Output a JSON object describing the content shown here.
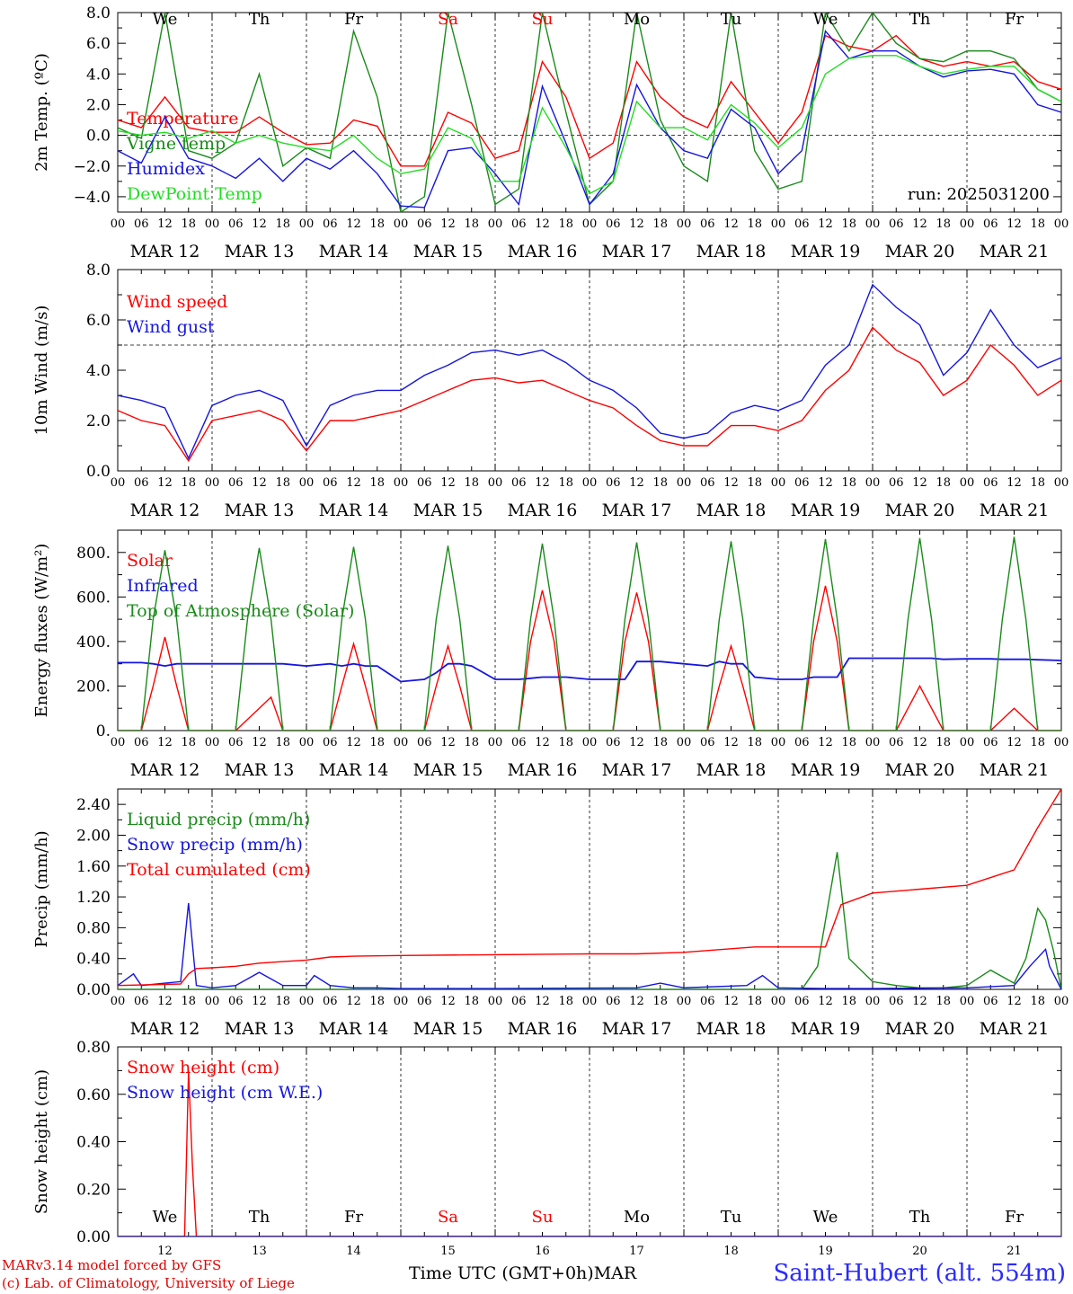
{
  "footer": {
    "model": "MARv3.14 model forced by GFS",
    "copyright": "(c) Lab. of Climatology, University of Liege",
    "time_axis": "Time UTC (GMT+0h)MAR",
    "station": "Saint-Hubert (alt. 554m)"
  },
  "colors": {
    "red": "#ff0000",
    "darkgreen": "#1a8a1a",
    "blue": "#1515e0",
    "lightgreen": "#22dd22"
  },
  "chart_data": [
    {
      "type": "line",
      "id": "temp",
      "ylabel": "2m Temp. (ºC)",
      "ylim": [
        -5,
        8
      ],
      "yticks": [
        -4,
        -2,
        0,
        2,
        4,
        6,
        8
      ],
      "ytick_labels": [
        "−4.0",
        "−2.0",
        "0.0",
        "2.0",
        "4.0",
        "6.0",
        "8.0"
      ],
      "reference_line": 0,
      "run_label": "run: 2025031200",
      "day_names": [
        {
          "text": "We",
          "color": "#000000"
        },
        {
          "text": "Th",
          "color": "#000000"
        },
        {
          "text": "Fr",
          "color": "#000000"
        },
        {
          "text": "Sa",
          "color": "#ff0000"
        },
        {
          "text": "Su",
          "color": "#ff0000"
        },
        {
          "text": "Mo",
          "color": "#000000"
        },
        {
          "text": "Tu",
          "color": "#000000"
        },
        {
          "text": "We",
          "color": "#000000"
        },
        {
          "text": "Th",
          "color": "#000000"
        },
        {
          "text": "Fr",
          "color": "#000000"
        }
      ],
      "x_hours": [
        0,
        6,
        12,
        18,
        24,
        30,
        36,
        42,
        48,
        54,
        60,
        66,
        72,
        78,
        84,
        90,
        96,
        102,
        108,
        114,
        120,
        126,
        132,
        138,
        144,
        150,
        156,
        162,
        168,
        174,
        180,
        186,
        192,
        198,
        204,
        210,
        216,
        222,
        228,
        234,
        240
      ],
      "series": [
        {
          "name": "Temperature",
          "color": "#ff0000",
          "values": [
            1.0,
            0.5,
            2.5,
            0.5,
            0.2,
            0.2,
            1.2,
            0.2,
            -0.6,
            -0.5,
            1.0,
            0.6,
            -2.0,
            -2.0,
            1.5,
            0.8,
            -1.5,
            -1.0,
            4.8,
            2.5,
            -1.5,
            -0.5,
            4.8,
            2.5,
            1.2,
            0.5,
            3.5,
            1.5,
            -0.5,
            1.5,
            6.5,
            5.8,
            5.5,
            6.5,
            5.0,
            4.5,
            4.8,
            4.5,
            4.8,
            3.5,
            3.0
          ]
        },
        {
          "name": "Vigne temp",
          "color": "#1a8a1a",
          "values": [
            0.5,
            -0.2,
            8.0,
            -1.0,
            -1.5,
            -0.5,
            4.0,
            -2.0,
            -0.8,
            -1.5,
            6.8,
            2.5,
            -5.0,
            -4.0,
            8.0,
            2.0,
            -4.5,
            -3.5,
            8.0,
            1.5,
            -4.5,
            -3.0,
            8.0,
            1.0,
            -2.0,
            -3.0,
            8.0,
            -1.0,
            -3.5,
            -3.0,
            8.0,
            5.5,
            8.0,
            6.0,
            5.0,
            4.8,
            5.5,
            5.5,
            5.0,
            3.0,
            2.2
          ]
        },
        {
          "name": "Humidex",
          "color": "#1515e0",
          "values": [
            -1.0,
            -1.8,
            1.2,
            -1.5,
            -2.0,
            -2.8,
            -1.5,
            -3.0,
            -1.5,
            -2.2,
            -1.0,
            -2.5,
            -4.6,
            -4.7,
            -1.0,
            -0.8,
            -2.5,
            -4.5,
            3.2,
            -0.5,
            -4.5,
            -2.5,
            3.3,
            0.5,
            -1.0,
            -1.5,
            1.7,
            0.5,
            -2.5,
            -1.0,
            6.8,
            5.0,
            5.5,
            5.5,
            4.5,
            3.8,
            4.2,
            4.3,
            4.0,
            2.0,
            1.5
          ]
        },
        {
          "name": "DewPoint Temp",
          "color": "#22dd22",
          "values": [
            0.3,
            0.0,
            0.2,
            -0.2,
            0.3,
            -0.5,
            0.0,
            -0.5,
            -0.8,
            -1.0,
            0.0,
            -1.5,
            -2.5,
            -2.2,
            0.5,
            -0.2,
            -3.0,
            -3.0,
            1.8,
            -0.8,
            -3.8,
            -3.0,
            2.2,
            0.5,
            0.5,
            -0.3,
            2.0,
            0.8,
            -0.8,
            0.5,
            4.0,
            5.0,
            5.2,
            5.2,
            4.5,
            4.0,
            4.3,
            4.5,
            4.5,
            3.0,
            2.2
          ]
        }
      ]
    },
    {
      "type": "line",
      "id": "wind",
      "ylabel": "10m Wind (m/s)",
      "ylim": [
        0,
        8
      ],
      "yticks": [
        0,
        2,
        4,
        6,
        8
      ],
      "ytick_labels": [
        "0.0",
        "2.0",
        "4.0",
        "6.0",
        "8.0"
      ],
      "reference_line": 5,
      "x_hours": [
        0,
        6,
        12,
        18,
        24,
        30,
        36,
        42,
        48,
        54,
        60,
        66,
        72,
        78,
        84,
        90,
        96,
        102,
        108,
        114,
        120,
        126,
        132,
        138,
        144,
        150,
        156,
        162,
        168,
        174,
        180,
        186,
        192,
        198,
        204,
        210,
        216,
        222,
        228,
        234,
        240
      ],
      "series": [
        {
          "name": "Wind speed",
          "color": "#ff0000",
          "values": [
            2.4,
            2.0,
            1.8,
            0.4,
            2.0,
            2.2,
            2.4,
            2.0,
            0.8,
            2.0,
            2.0,
            2.2,
            2.4,
            2.8,
            3.2,
            3.6,
            3.7,
            3.5,
            3.6,
            3.2,
            2.8,
            2.5,
            1.8,
            1.2,
            1.0,
            1.0,
            1.8,
            1.8,
            1.6,
            2.0,
            3.2,
            4.0,
            5.7,
            4.8,
            4.3,
            3.0,
            3.6,
            5.0,
            4.2,
            3.0,
            3.6
          ]
        },
        {
          "name": "Wind gust",
          "color": "#1515e0",
          "values": [
            3.0,
            2.8,
            2.5,
            0.5,
            2.6,
            3.0,
            3.2,
            2.8,
            1.0,
            2.6,
            3.0,
            3.2,
            3.2,
            3.8,
            4.2,
            4.7,
            4.8,
            4.6,
            4.8,
            4.3,
            3.6,
            3.2,
            2.5,
            1.5,
            1.3,
            1.5,
            2.3,
            2.6,
            2.4,
            2.8,
            4.2,
            5.0,
            7.4,
            6.5,
            5.8,
            3.8,
            4.7,
            6.4,
            5.0,
            4.1,
            4.5
          ]
        }
      ]
    },
    {
      "type": "line",
      "id": "energy",
      "ylabel": "Energy fluxes (W/m²)",
      "ylim": [
        0,
        900
      ],
      "yticks": [
        0,
        200,
        400,
        600,
        800
      ],
      "ytick_labels": [
        "0.",
        "200.",
        "400.",
        "600.",
        "800."
      ],
      "x_hours": [
        0,
        6,
        9,
        12,
        15,
        18,
        24,
        30,
        33,
        36,
        39,
        42,
        48,
        54,
        57,
        60,
        63,
        66,
        72,
        78,
        81,
        84,
        87,
        90,
        96,
        102,
        105,
        108,
        111,
        114,
        120,
        126,
        129,
        132,
        135,
        138,
        144,
        150,
        153,
        156,
        159,
        162,
        168,
        174,
        177,
        180,
        183,
        186,
        192,
        198,
        201,
        204,
        207,
        210,
        216,
        222,
        225,
        228,
        231,
        234,
        240
      ],
      "series": [
        {
          "name": "Solar",
          "color": "#ff0000",
          "values": [
            0,
            0,
            200,
            420,
            200,
            0,
            0,
            0,
            50,
            100,
            150,
            0,
            0,
            0,
            200,
            390,
            200,
            0,
            0,
            0,
            200,
            380,
            200,
            0,
            0,
            0,
            400,
            630,
            400,
            0,
            0,
            0,
            400,
            620,
            400,
            0,
            0,
            0,
            200,
            380,
            200,
            0,
            0,
            0,
            400,
            650,
            400,
            0,
            0,
            0,
            100,
            200,
            100,
            0,
            0,
            0,
            50,
            100,
            50,
            0,
            0
          ]
        },
        {
          "name": "Infrared",
          "color": "#1515e0",
          "values": [
            305,
            305,
            300,
            290,
            300,
            300,
            300,
            300,
            300,
            300,
            300,
            300,
            290,
            300,
            290,
            300,
            290,
            290,
            220,
            230,
            260,
            300,
            300,
            290,
            230,
            230,
            235,
            240,
            240,
            240,
            230,
            230,
            230,
            310,
            310,
            310,
            300,
            290,
            310,
            300,
            300,
            240,
            230,
            230,
            240,
            240,
            240,
            325,
            325,
            325,
            325,
            325,
            325,
            320,
            322,
            322,
            320,
            320,
            320,
            318,
            315
          ]
        },
        {
          "name": "Top of Atmosphere (Solar)",
          "color": "#1a8a1a",
          "values": [
            0,
            0,
            500,
            810,
            500,
            0,
            0,
            0,
            500,
            820,
            500,
            0,
            0,
            0,
            500,
            825,
            500,
            0,
            0,
            0,
            500,
            830,
            500,
            0,
            0,
            0,
            500,
            840,
            500,
            0,
            0,
            0,
            500,
            845,
            500,
            0,
            0,
            0,
            500,
            850,
            500,
            0,
            0,
            0,
            500,
            860,
            500,
            0,
            0,
            0,
            500,
            865,
            500,
            0,
            0,
            0,
            500,
            870,
            500,
            0,
            0
          ]
        }
      ]
    },
    {
      "type": "line",
      "id": "precip",
      "ylabel": "Precip (mm/h)",
      "ylim": [
        0,
        2.6
      ],
      "yticks": [
        0,
        0.4,
        0.8,
        1.2,
        1.6,
        2.0,
        2.4
      ],
      "ytick_labels": [
        "0.00",
        "0.40",
        "0.80",
        "1.20",
        "1.60",
        "2.00",
        "2.40"
      ],
      "series": [
        {
          "name": "Liquid precip (mm/h)",
          "color": "#1a8a1a",
          "x": [
            0,
            174,
            178,
            183,
            186,
            192,
            198,
            204,
            210,
            216,
            222,
            228,
            231,
            234,
            236,
            238,
            240
          ],
          "values": [
            0,
            0,
            0.3,
            1.78,
            0.4,
            0.1,
            0.05,
            0.02,
            0.02,
            0.05,
            0.25,
            0.08,
            0.4,
            1.05,
            0.9,
            0.5,
            0
          ]
        },
        {
          "name": "Snow precip (mm/h)",
          "color": "#1515e0",
          "x": [
            0,
            4,
            6,
            12,
            16,
            18,
            20,
            24,
            30,
            36,
            42,
            48,
            50,
            54,
            60,
            66,
            72,
            96,
            132,
            138,
            144,
            160,
            164,
            168,
            180,
            192,
            216,
            228,
            232,
            236,
            237,
            240
          ],
          "values": [
            0.05,
            0.2,
            0.05,
            0.08,
            0.1,
            1.12,
            0.05,
            0.02,
            0.05,
            0.22,
            0.05,
            0.05,
            0.18,
            0.05,
            0.02,
            0.02,
            0.01,
            0.01,
            0.02,
            0.08,
            0.02,
            0.05,
            0.18,
            0.02,
            0.01,
            0.01,
            0.02,
            0.05,
            0.3,
            0.52,
            0.3,
            0
          ]
        },
        {
          "name": "Total cumulated (cm)",
          "color": "#ff0000",
          "x": [
            0,
            16,
            18,
            20,
            24,
            30,
            36,
            42,
            48,
            54,
            60,
            72,
            96,
            120,
            132,
            144,
            162,
            168,
            174,
            180,
            184,
            192,
            204,
            216,
            222,
            228,
            234,
            240
          ],
          "values": [
            0.05,
            0.07,
            0.2,
            0.27,
            0.28,
            0.3,
            0.34,
            0.36,
            0.38,
            0.42,
            0.43,
            0.44,
            0.45,
            0.46,
            0.46,
            0.48,
            0.55,
            0.55,
            0.55,
            0.55,
            1.1,
            1.25,
            1.3,
            1.35,
            1.45,
            1.55,
            2.1,
            2.6
          ]
        }
      ]
    },
    {
      "type": "line",
      "id": "snow",
      "ylabel": "Snow height (cm)",
      "ylim": [
        0,
        0.8
      ],
      "yticks": [
        0,
        0.2,
        0.4,
        0.6,
        0.8
      ],
      "ytick_labels": [
        "0.00",
        "0.20",
        "0.40",
        "0.60",
        "0.80"
      ],
      "day_names": [
        {
          "text": "We",
          "color": "#000000"
        },
        {
          "text": "Th",
          "color": "#000000"
        },
        {
          "text": "Fr",
          "color": "#000000"
        },
        {
          "text": "Sa",
          "color": "#ff0000"
        },
        {
          "text": "Su",
          "color": "#ff0000"
        },
        {
          "text": "Mo",
          "color": "#000000"
        },
        {
          "text": "Tu",
          "color": "#000000"
        },
        {
          "text": "We",
          "color": "#000000"
        },
        {
          "text": "Th",
          "color": "#000000"
        },
        {
          "text": "Fr",
          "color": "#000000"
        }
      ],
      "day_numbers": [
        "12",
        "13",
        "14",
        "15",
        "16",
        "17",
        "18",
        "19",
        "20",
        "21"
      ],
      "series": [
        {
          "name": "Snow height (cm)",
          "color": "#ff0000",
          "x": [
            0,
            17,
            18,
            19,
            20,
            240
          ],
          "values": [
            0,
            0,
            0.7,
            0.3,
            0,
            0
          ]
        },
        {
          "name": "Snow height (cm W.E.)",
          "color": "#1515e0",
          "x": [
            0,
            240
          ],
          "values": [
            0,
            0
          ]
        }
      ]
    }
  ],
  "x_axis": {
    "hour_labels": [
      "00",
      "06",
      "12",
      "18"
    ],
    "last_label": "00",
    "date_labels": [
      "MAR 12",
      "MAR 13",
      "MAR 14",
      "MAR 15",
      "MAR 16",
      "MAR 17",
      "MAR 18",
      "MAR 19",
      "MAR 20",
      "MAR 21"
    ]
  }
}
